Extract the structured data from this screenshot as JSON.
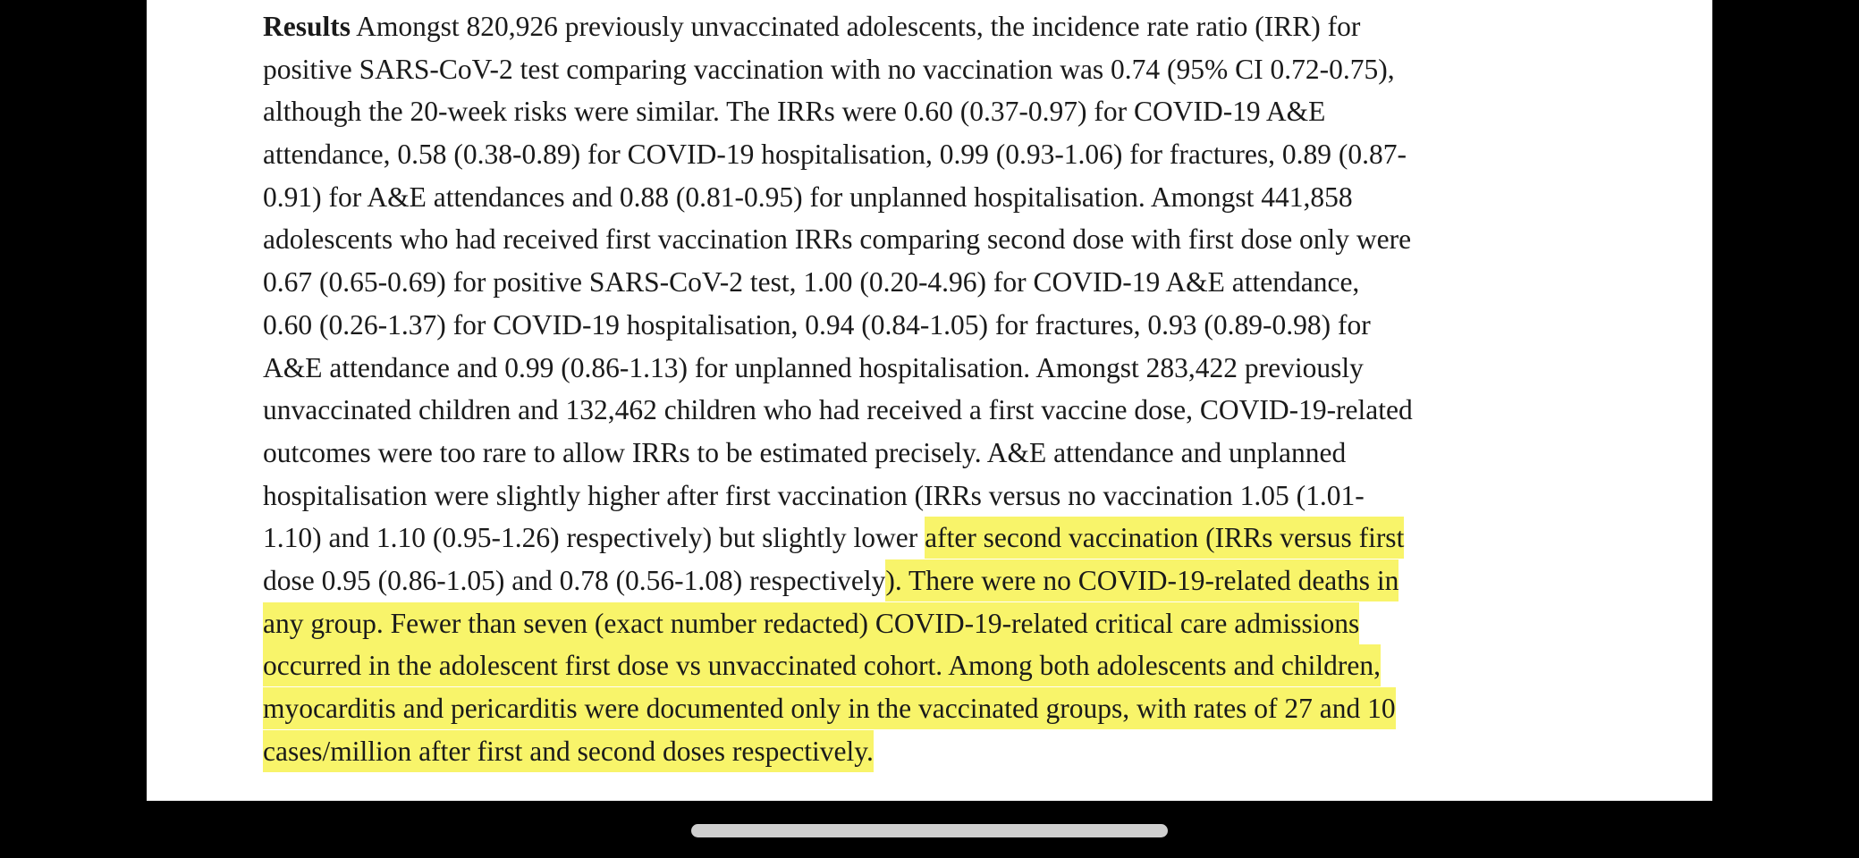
{
  "document": {
    "heading": "Results",
    "highlight_color": "#f8f46a",
    "lines": [
      [
        {
          "text": " Amongst 820,926 previously unvaccinated adolescents, the incidence rate ratio (IRR) for",
          "hl": false
        }
      ],
      [
        {
          "text": "positive SARS-CoV-2 test comparing vaccination with no vaccination was 0.74 (95% CI 0.72-0.75),",
          "hl": false
        }
      ],
      [
        {
          "text": "although the 20-week risks were similar. The IRRs were 0.60 (0.37-0.97) for COVID-19 A&E",
          "hl": false
        }
      ],
      [
        {
          "text": "attendance, 0.58 (0.38-0.89) for COVID-19 hospitalisation, 0.99 (0.93-1.06) for fractures, 0.89 (0.87-",
          "hl": false
        }
      ],
      [
        {
          "text": "0.91) for A&E attendances and 0.88 (0.81-0.95) for unplanned hospitalisation. Amongst 441,858",
          "hl": false
        }
      ],
      [
        {
          "text": "adolescents who had received first vaccination IRRs comparing second dose with first dose only were",
          "hl": false
        }
      ],
      [
        {
          "text": "0.67 (0.65-0.69) for positive SARS-CoV-2 test, 1.00 (0.20-4.96) for COVID-19 A&E attendance,",
          "hl": false
        }
      ],
      [
        {
          "text": "0.60 (0.26-1.37) for COVID-19 hospitalisation, 0.94 (0.84-1.05) for fractures, 0.93 (0.89-0.98) for",
          "hl": false
        }
      ],
      [
        {
          "text": "A&E attendance and 0.99 (0.86-1.13) for unplanned hospitalisation. Amongst 283,422 previously",
          "hl": false
        }
      ],
      [
        {
          "text": "unvaccinated children and 132,462 children who had received a first vaccine dose, COVID-19-related",
          "hl": false
        }
      ],
      [
        {
          "text": "outcomes were too rare to allow IRRs to be estimated precisely. A&E attendance and unplanned",
          "hl": false
        }
      ],
      [
        {
          "text": "hospitalisation were slightly higher after first vaccination (IRRs versus no vaccination 1.05 (1.01-",
          "hl": false
        }
      ],
      [
        {
          "text": "1.10) and 1.10 (0.95-1.26) respectively) but slightly lower ",
          "hl": false
        },
        {
          "text": "after second vaccination (IRRs versus first",
          "hl": true
        }
      ],
      [
        {
          "text": "dose 0.95 (0.86-1.05) and 0.78 (0.56-1.08) respectively",
          "hl": false
        },
        {
          "text": "). There were no COVID-19-related deaths in",
          "hl": true
        }
      ],
      [
        {
          "text": "any group. Fewer than seven (exact number redacted) COVID-19-related critical care admissions",
          "hl": true
        }
      ],
      [
        {
          "text": "occurred in the adolescent first dose vs unvaccinated cohort. Among both adolescents and children,",
          "hl": true
        }
      ],
      [
        {
          "text": "myocarditis and pericarditis were documented only in the vaccinated groups, with rates of 27 and 10",
          "hl": true
        }
      ],
      [
        {
          "text": "cases/million after first and second doses respectively.",
          "hl": true
        }
      ]
    ]
  }
}
